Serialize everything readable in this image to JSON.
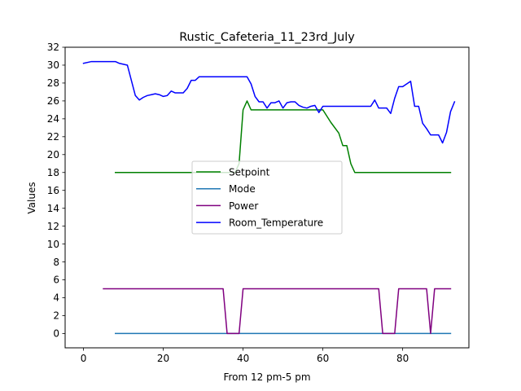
{
  "chart_data": {
    "type": "line",
    "title": "Rustic_Cafeteria_11_23rd_July",
    "xlabel": "From 12 pm-5 pm",
    "ylabel": "Values",
    "xlim": [
      -4.6,
      96.6
    ],
    "ylim": [
      -1.6,
      32
    ],
    "xticks": [
      0,
      20,
      40,
      60,
      80
    ],
    "yticks": [
      0,
      2,
      4,
      6,
      8,
      10,
      12,
      14,
      16,
      18,
      20,
      22,
      24,
      26,
      28,
      30,
      32
    ],
    "grid": false,
    "legend_position": "center",
    "series": [
      {
        "name": "Setpoint",
        "color": "#008000",
        "points": [
          [
            8,
            18
          ],
          [
            38,
            18
          ],
          [
            39,
            19
          ],
          [
            40,
            25
          ],
          [
            41,
            26
          ],
          [
            42,
            25
          ],
          [
            60,
            25
          ],
          [
            62,
            23.6
          ],
          [
            64,
            22.4
          ],
          [
            65,
            21
          ],
          [
            66,
            21
          ],
          [
            67,
            19
          ],
          [
            68,
            18
          ],
          [
            92,
            18
          ]
        ]
      },
      {
        "name": "Mode",
        "color": "#1f77b4",
        "points": [
          [
            8,
            0
          ],
          [
            92,
            0
          ]
        ]
      },
      {
        "name": "Power",
        "color": "#800080",
        "points": [
          [
            5,
            5
          ],
          [
            35,
            5
          ],
          [
            36,
            0
          ],
          [
            39,
            0
          ],
          [
            40,
            5
          ],
          [
            74,
            5
          ],
          [
            75,
            0
          ],
          [
            78,
            0
          ],
          [
            79,
            5
          ],
          [
            86,
            5
          ],
          [
            87,
            0
          ],
          [
            88,
            5
          ],
          [
            92,
            5
          ]
        ]
      },
      {
        "name": "Room_Temperature",
        "color": "#0000ff",
        "points": [
          [
            0,
            30.2
          ],
          [
            2,
            30.4
          ],
          [
            8,
            30.4
          ],
          [
            9,
            30.2
          ],
          [
            11,
            30
          ],
          [
            13,
            26.6
          ],
          [
            14,
            26.1
          ],
          [
            15,
            26.4
          ],
          [
            16,
            26.6
          ],
          [
            17,
            26.7
          ],
          [
            18,
            26.8
          ],
          [
            19,
            26.7
          ],
          [
            20,
            26.5
          ],
          [
            21,
            26.6
          ],
          [
            22,
            27.1
          ],
          [
            23,
            26.9
          ],
          [
            25,
            26.9
          ],
          [
            26,
            27.4
          ],
          [
            27,
            28.3
          ],
          [
            28,
            28.3
          ],
          [
            29,
            28.7
          ],
          [
            41,
            28.7
          ],
          [
            42,
            27.9
          ],
          [
            43,
            26.5
          ],
          [
            44,
            25.9
          ],
          [
            45,
            25.9
          ],
          [
            46,
            25.2
          ],
          [
            47,
            25.8
          ],
          [
            48,
            25.8
          ],
          [
            49,
            26
          ],
          [
            50,
            25.2
          ],
          [
            51,
            25.8
          ],
          [
            52,
            25.9
          ],
          [
            53,
            25.9
          ],
          [
            54,
            25.5
          ],
          [
            55,
            25.3
          ],
          [
            56,
            25.2
          ],
          [
            57,
            25.4
          ],
          [
            58,
            25.5
          ],
          [
            59,
            24.7
          ],
          [
            60,
            25.4
          ],
          [
            72,
            25.4
          ],
          [
            73,
            26.1
          ],
          [
            74,
            25.2
          ],
          [
            76,
            25.2
          ],
          [
            77,
            24.6
          ],
          [
            78,
            26.3
          ],
          [
            79,
            27.6
          ],
          [
            80,
            27.6
          ],
          [
            82,
            28.2
          ],
          [
            83,
            25.4
          ],
          [
            84,
            25.4
          ],
          [
            85,
            23.5
          ],
          [
            86,
            22.9
          ],
          [
            87,
            22.2
          ],
          [
            89,
            22.2
          ],
          [
            90,
            21.3
          ],
          [
            91,
            22.5
          ],
          [
            92,
            24.8
          ],
          [
            93,
            25.9
          ]
        ]
      }
    ]
  }
}
